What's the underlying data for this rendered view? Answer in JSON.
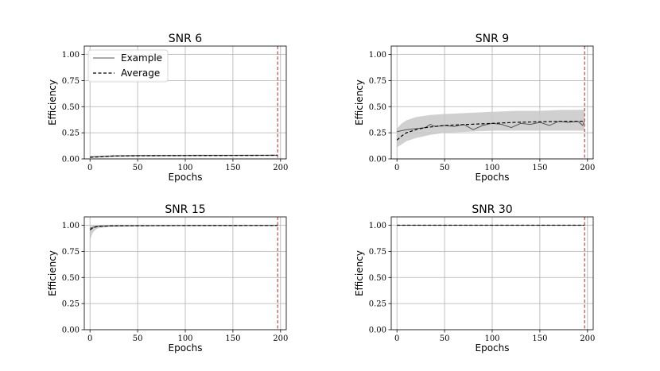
{
  "figure": {
    "legend": {
      "example": "Example",
      "average": "Average",
      "placement": "upper-left of first panel"
    },
    "colors": {
      "example": "#555555",
      "average": "#000000",
      "background_runs": "#c8c8c8",
      "vline": "#e03c31",
      "grid": "#b0b0b0"
    }
  },
  "chart_data": [
    {
      "type": "line",
      "title": "SNR 6",
      "xlabel": "Epochs",
      "ylabel": "Efficiency",
      "xlim": [
        -6,
        206
      ],
      "ylim": [
        0,
        1.08
      ],
      "xticks": [
        "0",
        "50",
        "100",
        "150",
        "200"
      ],
      "yticks": [
        "0.00",
        "0.25",
        "0.50",
        "0.75",
        "1.00"
      ],
      "grid": true,
      "vline_x": 197,
      "band": {
        "x": [
          0,
          10,
          25,
          50,
          100,
          150,
          197
        ],
        "lower": [
          0.01,
          0.015,
          0.02,
          0.022,
          0.025,
          0.026,
          0.027
        ],
        "upper": [
          0.025,
          0.03,
          0.035,
          0.038,
          0.04,
          0.041,
          0.042
        ]
      },
      "series": [
        {
          "name": "Example",
          "x": [
            0,
            10,
            25,
            50,
            100,
            150,
            197
          ],
          "values": [
            0.02,
            0.022,
            0.028,
            0.032,
            0.033,
            0.034,
            0.035
          ]
        },
        {
          "name": "Average",
          "x": [
            0,
            10,
            25,
            50,
            100,
            150,
            197
          ],
          "values": [
            0.015,
            0.02,
            0.027,
            0.03,
            0.032,
            0.033,
            0.034
          ]
        }
      ]
    },
    {
      "type": "line",
      "title": "SNR 9",
      "xlabel": "Epochs",
      "ylabel": "Efficiency",
      "xlim": [
        -6,
        206
      ],
      "ylim": [
        0,
        1.08
      ],
      "xticks": [
        "0",
        "50",
        "100",
        "150",
        "200"
      ],
      "yticks": [
        "0.00",
        "0.25",
        "0.50",
        "0.75",
        "1.00"
      ],
      "grid": true,
      "vline_x": 197,
      "band": {
        "x": [
          0,
          5,
          10,
          20,
          35,
          50,
          75,
          100,
          125,
          150,
          175,
          197
        ],
        "lower": [
          0.11,
          0.14,
          0.17,
          0.2,
          0.23,
          0.25,
          0.26,
          0.27,
          0.27,
          0.27,
          0.27,
          0.27
        ],
        "upper": [
          0.29,
          0.34,
          0.37,
          0.4,
          0.42,
          0.43,
          0.44,
          0.45,
          0.46,
          0.46,
          0.47,
          0.47
        ]
      },
      "series": [
        {
          "name": "Example",
          "x": [
            0,
            5,
            10,
            20,
            30,
            35,
            40,
            50,
            60,
            70,
            80,
            90,
            100,
            110,
            120,
            130,
            140,
            150,
            160,
            170,
            180,
            190,
            195,
            197
          ],
          "values": [
            0.26,
            0.27,
            0.28,
            0.29,
            0.3,
            0.33,
            0.31,
            0.32,
            0.31,
            0.33,
            0.28,
            0.32,
            0.34,
            0.33,
            0.3,
            0.34,
            0.33,
            0.35,
            0.32,
            0.36,
            0.35,
            0.36,
            0.32,
            0.37
          ]
        },
        {
          "name": "Average",
          "x": [
            0,
            5,
            10,
            20,
            30,
            40,
            50,
            75,
            100,
            125,
            150,
            175,
            197
          ],
          "values": [
            0.18,
            0.22,
            0.25,
            0.28,
            0.3,
            0.31,
            0.32,
            0.33,
            0.34,
            0.35,
            0.355,
            0.36,
            0.36
          ]
        }
      ]
    },
    {
      "type": "line",
      "title": "SNR 15",
      "xlabel": "Epochs",
      "ylabel": "Efficiency",
      "xlim": [
        -6,
        206
      ],
      "ylim": [
        0,
        1.08
      ],
      "xticks": [
        "0",
        "50",
        "100",
        "150",
        "200"
      ],
      "yticks": [
        "0.00",
        "0.25",
        "0.50",
        "0.75",
        "1.00"
      ],
      "grid": true,
      "vline_x": 197,
      "band": {
        "x": [
          0,
          3,
          6,
          10,
          20,
          40,
          100,
          197
        ],
        "lower": [
          0.86,
          0.93,
          0.96,
          0.975,
          0.985,
          0.99,
          0.995,
          0.996
        ],
        "upper": [
          0.99,
          0.995,
          0.997,
          0.998,
          0.999,
          0.999,
          1.0,
          1.0
        ]
      },
      "series": [
        {
          "name": "Example",
          "x": [
            0,
            5,
            10,
            20,
            50,
            100,
            197
          ],
          "values": [
            0.97,
            0.985,
            0.99,
            0.993,
            0.996,
            0.997,
            0.998
          ]
        },
        {
          "name": "Average",
          "x": [
            0,
            3,
            6,
            10,
            20,
            40,
            100,
            197
          ],
          "values": [
            0.955,
            0.975,
            0.984,
            0.989,
            0.993,
            0.995,
            0.997,
            0.998
          ]
        }
      ]
    },
    {
      "type": "line",
      "title": "SNR 30",
      "xlabel": "Epochs",
      "ylabel": "Efficiency",
      "xlim": [
        -6,
        206
      ],
      "ylim": [
        0,
        1.08
      ],
      "xticks": [
        "0",
        "50",
        "100",
        "150",
        "200"
      ],
      "yticks": [
        "0.00",
        "0.25",
        "0.50",
        "0.75",
        "1.00"
      ],
      "grid": true,
      "vline_x": 197,
      "band": {
        "x": [
          0,
          197
        ],
        "lower": [
          0.998,
          0.999
        ],
        "upper": [
          1.0,
          1.0
        ]
      },
      "series": [
        {
          "name": "Example",
          "x": [
            0,
            197
          ],
          "values": [
            1.0,
            1.0
          ]
        },
        {
          "name": "Average",
          "x": [
            0,
            197
          ],
          "values": [
            1.0,
            1.0
          ]
        }
      ]
    }
  ]
}
